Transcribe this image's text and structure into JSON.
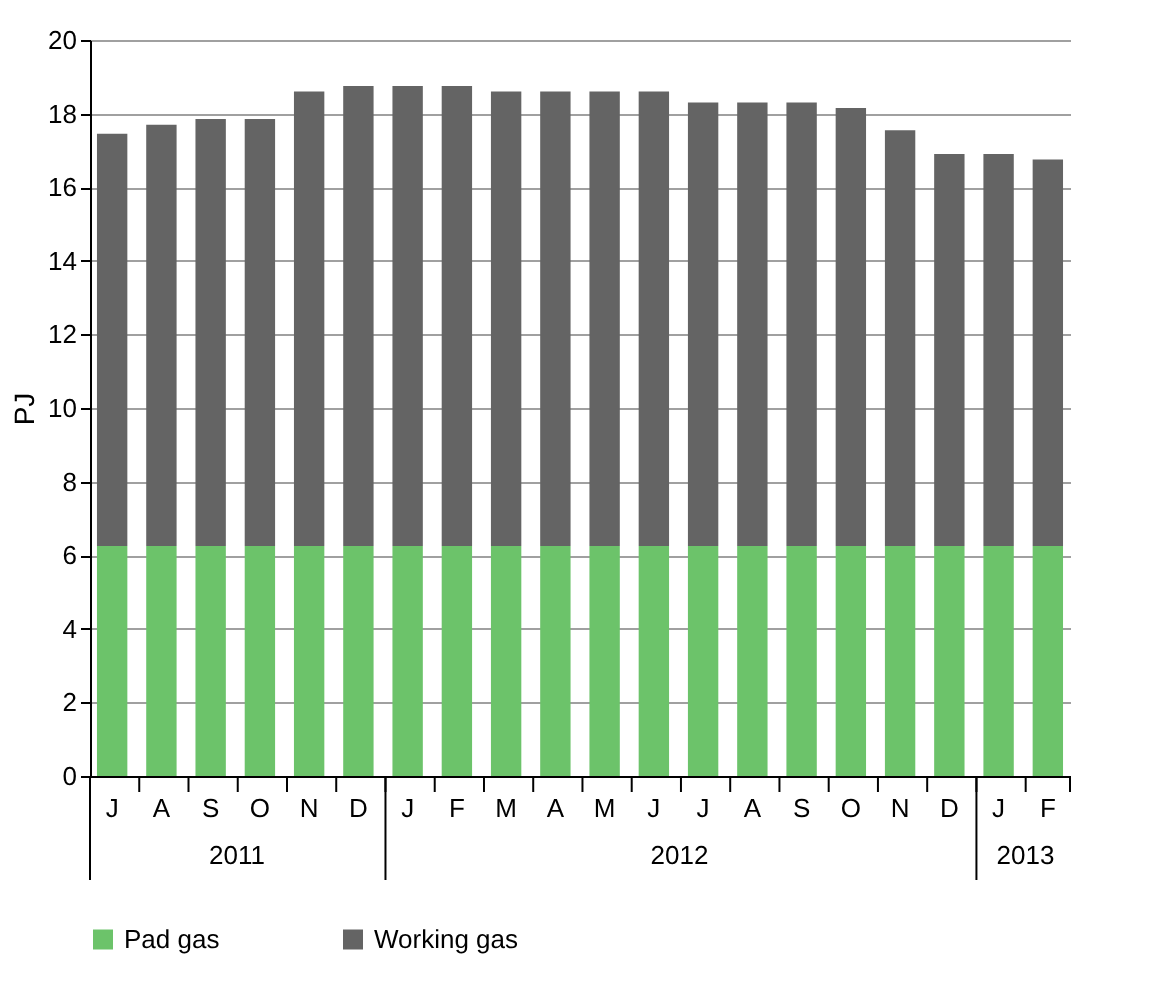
{
  "chart_data": {
    "type": "bar",
    "stacked": true,
    "ylabel": "PJ",
    "categories": [
      "J",
      "A",
      "S",
      "O",
      "N",
      "D",
      "J",
      "F",
      "M",
      "A",
      "M",
      "J",
      "J",
      "A",
      "S",
      "O",
      "N",
      "D",
      "J",
      "F"
    ],
    "series": [
      {
        "name": "Pad gas",
        "color": "#6cc36a",
        "values": [
          6.25,
          6.25,
          6.25,
          6.25,
          6.25,
          6.25,
          6.25,
          6.25,
          6.25,
          6.25,
          6.25,
          6.25,
          6.25,
          6.25,
          6.25,
          6.25,
          6.25,
          6.25,
          6.25,
          6.25
        ]
      },
      {
        "name": "Working gas",
        "color": "#646464",
        "values": [
          11.2,
          11.45,
          11.6,
          11.6,
          12.35,
          12.5,
          12.5,
          12.5,
          12.35,
          12.35,
          12.35,
          12.35,
          12.05,
          12.05,
          12.05,
          11.9,
          11.3,
          10.65,
          10.65,
          10.5
        ]
      }
    ],
    "annotations": [
      "2011",
      "2012",
      "2013"
    ],
    "ylim": [
      0,
      20
    ],
    "yticks": [
      0,
      2,
      4,
      6,
      8,
      10,
      12,
      14,
      16,
      18,
      20
    ],
    "grid": "y",
    "legend": "bottom"
  }
}
